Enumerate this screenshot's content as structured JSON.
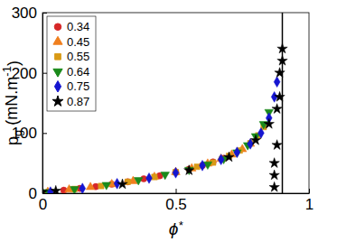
{
  "chart_data": {
    "type": "scatter",
    "x_label": "ϕ*",
    "y_label": "pg (mN.m-1)",
    "xlim": [
      0,
      1
    ],
    "ylim": [
      0,
      300
    ],
    "xticks": [
      0,
      0.5,
      1
    ],
    "yticks": [
      0,
      100,
      200,
      300
    ],
    "legend": "upper left",
    "vline_x": 0.9,
    "series": [
      {
        "name": "0.34",
        "color": "#d62728",
        "marker": "circle",
        "x": [
          0.02,
          0.08,
          0.14,
          0.2,
          0.26,
          0.32,
          0.38,
          0.44,
          0.5,
          0.55,
          0.6,
          0.64,
          0.68
        ],
        "values": [
          2,
          5,
          8,
          11,
          15,
          19,
          24,
          29,
          35,
          40,
          46,
          52,
          58
        ]
      },
      {
        "name": "0.45",
        "color": "#f07f1e",
        "marker": "triangle",
        "x": [
          0.02,
          0.1,
          0.18,
          0.26,
          0.34,
          0.42,
          0.5,
          0.56,
          0.62,
          0.67,
          0.71,
          0.75,
          0.78
        ],
        "values": [
          2,
          6,
          10,
          15,
          20,
          27,
          35,
          41,
          49,
          57,
          64,
          73,
          82
        ]
      },
      {
        "name": "0.55",
        "color": "#d99a16",
        "marker": "square",
        "x": [
          0.03,
          0.12,
          0.22,
          0.32,
          0.42,
          0.5,
          0.58,
          0.64,
          0.7,
          0.74,
          0.78,
          0.81,
          0.83
        ],
        "values": [
          2,
          7,
          12,
          19,
          27,
          35,
          44,
          51,
          62,
          71,
          83,
          96,
          110
        ]
      },
      {
        "name": "0.64",
        "color": "#1b8a1b",
        "marker": "triangle-down",
        "x": [
          0.02,
          0.12,
          0.24,
          0.36,
          0.46,
          0.55,
          0.62,
          0.68,
          0.73,
          0.77,
          0.8,
          0.83,
          0.85
        ],
        "values": [
          2,
          7,
          14,
          22,
          31,
          39,
          48,
          57,
          68,
          80,
          95,
          115,
          135
        ]
      },
      {
        "name": "0.75",
        "color": "#1515d0",
        "marker": "diamond",
        "x": [
          0.03,
          0.15,
          0.28,
          0.4,
          0.5,
          0.6,
          0.67,
          0.73,
          0.78,
          0.82,
          0.85,
          0.87,
          0.88
        ],
        "values": [
          2,
          8,
          16,
          25,
          34,
          46,
          56,
          68,
          82,
          100,
          125,
          160,
          185
        ]
      },
      {
        "name": "0.87",
        "color": "#000000",
        "marker": "star",
        "x": [
          0,
          0.05,
          0.3,
          0.55,
          0.7,
          0.8,
          0.85,
          0.87,
          0.87,
          0.87,
          0.88,
          0.88,
          0.89,
          0.89,
          0.9,
          0.9
        ],
        "values": [
          2,
          4,
          15,
          38,
          60,
          88,
          115,
          10,
          30,
          50,
          80,
          140,
          160,
          200,
          220,
          240
        ]
      }
    ]
  }
}
